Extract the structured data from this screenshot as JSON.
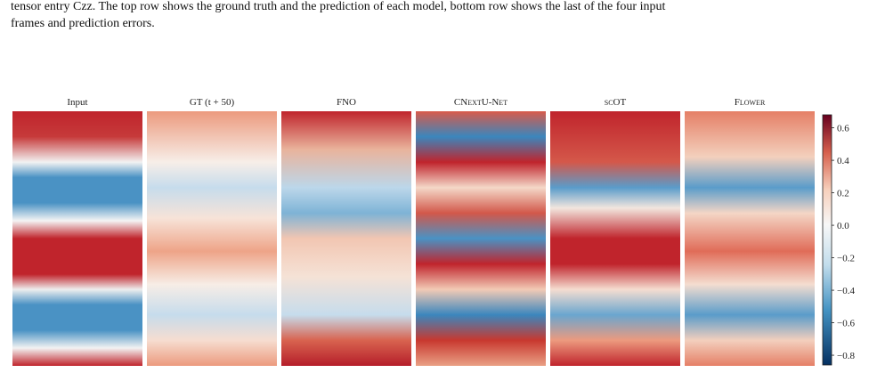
{
  "caption": {
    "lines": [
      "tensor entry Czz. The top row shows the ground truth and the prediction of each model, bottom row shows the last of the four input",
      "frames and prediction errors."
    ]
  },
  "panels": [
    "Input",
    "GT (t + 50)",
    "FNO",
    "CNextU-Net",
    "scOT",
    "Flower"
  ],
  "colorbar": {
    "lim": [
      -0.86,
      0.68
    ],
    "ticks": [
      0.6,
      0.4,
      0.2,
      {
        "value": 0,
        "label": "0.0"
      },
      {
        "value": -0.2,
        "label": "−0.2"
      },
      {
        "value": -0.4,
        "label": "−0.4"
      },
      {
        "value": -0.6,
        "label": "−0.6"
      },
      {
        "value": -0.8,
        "label": "−0.8"
      }
    ]
  }
}
